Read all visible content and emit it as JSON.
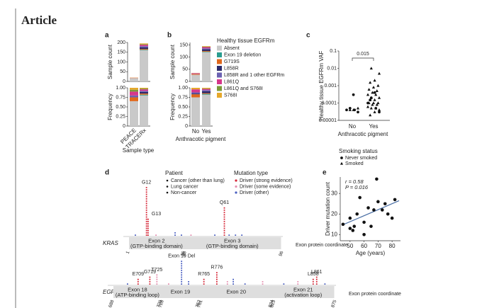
{
  "header": {
    "title": "Article"
  },
  "panels": {
    "a": {
      "label": "a",
      "xlabel": "Sample type",
      "categories": [
        "PEACE",
        "TRACERx"
      ],
      "count": {
        "ylabel": "Sample count",
        "ylim": [
          0,
          200
        ],
        "yticks": [
          0,
          50,
          100,
          150,
          200
        ],
        "values": [
          [
            17,
            0,
            1,
            0,
            0,
            1,
            0,
            1
          ],
          [
            160,
            3,
            4,
            8,
            6,
            7,
            3,
            4
          ]
        ]
      },
      "frequency": {
        "ylabel": "Frequency",
        "ylim": [
          0,
          1
        ],
        "yticks": [
          0,
          {
            "value": 0.25,
            "label": "0.25"
          },
          {
            "value": 0.5,
            "label": "0.50"
          },
          {
            "value": 0.75,
            "label": "0.75"
          },
          {
            "value": 1,
            "label": "1.00"
          }
        ],
        "values": [
          [
            0.65,
            0,
            0.1,
            0,
            0.05,
            0.1,
            0.05,
            0.05
          ],
          [
            0.8,
            0.02,
            0.03,
            0.04,
            0.03,
            0.04,
            0.02,
            0.02
          ]
        ]
      }
    },
    "b": {
      "label": "b",
      "xlabel": "Anthracotic pigment",
      "categories": [
        "No",
        "Yes"
      ],
      "count": {
        "ylabel": "Sample count",
        "ylim": [
          0,
          160
        ],
        "yticks": [
          0,
          50,
          100,
          150
        ],
        "values": [
          [
            27,
            0,
            3,
            0,
            1,
            3,
            0,
            1
          ],
          [
            120,
            2,
            3,
            7,
            4,
            5,
            2,
            2
          ]
        ]
      },
      "frequency": {
        "ylabel": "Frequency",
        "ylim": [
          0,
          1
        ],
        "yticks": [
          0,
          {
            "value": 0.25,
            "label": "0.25"
          },
          {
            "value": 0.5,
            "label": "0.50"
          },
          {
            "value": 0.75,
            "label": "0.75"
          },
          {
            "value": 1,
            "label": "1.00"
          }
        ],
        "values": [
          [
            0.75,
            0,
            0.08,
            0.02,
            0.03,
            0.08,
            0,
            0.04
          ],
          [
            0.82,
            0.02,
            0.02,
            0.05,
            0.03,
            0.03,
            0.01,
            0.02
          ]
        ]
      },
      "legend": {
        "title": "Healthy tissue EGFRm",
        "items": [
          {
            "name": "Absent",
            "color": "#c9c9c9"
          },
          {
            "name": "Exon 19 deletion",
            "color": "#2a9d8f"
          },
          {
            "name": "G719S",
            "color": "#e0681c"
          },
          {
            "name": "L858R",
            "color": "#2b2a6b"
          },
          {
            "name": "L858R and 1 other EGFRm",
            "color": "#6b62b3"
          },
          {
            "name": "L861Q",
            "color": "#d6378b"
          },
          {
            "name": "L861Q and S768I",
            "color": "#7a9a3a"
          },
          {
            "name": "S768I",
            "color": "#e6a82b"
          }
        ]
      }
    },
    "c": {
      "label": "c",
      "ylabel": "Healthy tissue EGFRm VAF",
      "xlabel": "Anthracotic pigment",
      "categories": [
        "No",
        "Yes"
      ],
      "ylim": [
        1e-05,
        0.1
      ],
      "log_scale": true,
      "yticks": [
        1e-05,
        0.0001,
        0.001,
        0.01,
        0.1
      ],
      "annotation": "0.015",
      "legend_title": "Smoking status",
      "series": [
        {
          "name": "Never smoked",
          "marker": "circle",
          "values": [
            [
              4e-05,
              4e-05,
              5e-05,
              3e-05,
              0.0003
            ],
            [
              0.0001,
              5e-05,
              0.0002,
              3e-05,
              0.0004,
              0.00015
            ]
          ]
        },
        {
          "name": "Smoked",
          "marker": "triangle",
          "values": [
            [
              4e-05,
              5e-05,
              4e-05
            ],
            [
              0.01,
              0.005,
              0.002,
              0.0015,
              0.001,
              0.0008,
              0.0006,
              0.0005,
              0.0004,
              0.0003,
              0.0003,
              0.0002,
              0.0002,
              0.00015,
              0.00015,
              0.0001,
              0.0001,
              0.0001,
              8e-05,
              8e-05,
              6e-05,
              5e-05,
              5e-05,
              4e-05,
              3e-05,
              2e-05
            ]
          ]
        }
      ]
    },
    "d": {
      "label": "d",
      "coordinate_label": "Exon protein coordinate",
      "patient_legend": {
        "title": "Patient",
        "items": [
          "Cancer (other than lung)",
          "Lung cancer",
          "Non-cancer"
        ]
      },
      "mutation_legend": {
        "title": "Mutation type",
        "items": [
          {
            "name": "Driver (strong evidence)",
            "color": "#d62839"
          },
          {
            "name": "Driver (some evidence)",
            "color": "#e58fb0"
          },
          {
            "name": "Driver (other)",
            "color": "#4a5fc1"
          }
        ]
      },
      "genes": [
        {
          "name": "KRAS",
          "xlim": [
            1,
            96
          ],
          "exons": [
            {
              "label": "Exon 2",
              "sublabel": "(GTP-binding domain)",
              "start": 1,
              "end": 35
            },
            {
              "label": "Exon 3",
              "sublabel": "(GTP-binding domain)",
              "start": 36,
              "end": 96
            }
          ],
          "mutations": [
            {
              "position": 12,
              "count": 22,
              "type": 0,
              "label": "G12"
            },
            {
              "position": 13,
              "count": 8,
              "type": 0,
              "label": "G13"
            },
            {
              "position": 61,
              "count": 13,
              "type": 0,
              "label": "Q61"
            },
            {
              "position": 5,
              "count": 1,
              "type": 2
            },
            {
              "position": 18,
              "count": 1,
              "type": 1
            },
            {
              "position": 30,
              "count": 2,
              "type": 2
            },
            {
              "position": 34,
              "count": 1,
              "type": 2
            },
            {
              "position": 40,
              "count": 1,
              "type": 1
            },
            {
              "position": 55,
              "count": 1,
              "type": 2
            },
            {
              "position": 64,
              "count": 1,
              "type": 2
            },
            {
              "position": 68,
              "count": 1,
              "type": 2
            },
            {
              "position": 72,
              "count": 1,
              "type": 2
            }
          ]
        },
        {
          "name": "EGFR",
          "xlim": [
            688,
            875
          ],
          "exons": [
            {
              "label": "Exon 18",
              "sublabel": "(ATP-binding loop)",
              "start": 688,
              "end": 728
            },
            {
              "label": "Exon 19",
              "start": 729,
              "end": 761
            },
            {
              "label": "Exon 20",
              "start": 762,
              "end": 823
            },
            {
              "label": "Exon 21",
              "sublabel": "(activation loop)",
              "start": 824,
              "end": 875
            }
          ],
          "mutations": [
            {
              "position": 709,
              "count": 3,
              "type": 0,
              "label": "E709"
            },
            {
              "position": 719,
              "count": 4,
              "type": 0,
              "label": "G719"
            },
            {
              "position": 725,
              "count": 5,
              "type": 1,
              "label": "T725"
            },
            {
              "position": 746,
              "count": 11,
              "type": 2,
              "label": "Exon 19 Del"
            },
            {
              "position": 765,
              "count": 3,
              "type": 0,
              "label": "R765"
            },
            {
              "position": 776,
              "count": 6,
              "type": 0,
              "label": "R776"
            },
            {
              "position": 858,
              "count": 3,
              "type": 0,
              "label": "L858"
            },
            {
              "position": 861,
              "count": 4,
              "type": 0,
              "label": "L861"
            },
            {
              "position": 700,
              "count": 1,
              "type": 2
            },
            {
              "position": 735,
              "count": 1,
              "type": 1
            },
            {
              "position": 752,
              "count": 2,
              "type": 2
            },
            {
              "position": 785,
              "count": 2,
              "type": 1
            },
            {
              "position": 790,
              "count": 3,
              "type": 2
            },
            {
              "position": 800,
              "count": 1,
              "type": 2
            },
            {
              "position": 815,
              "count": 2,
              "type": 1
            },
            {
              "position": 833,
              "count": 1,
              "type": 2
            },
            {
              "position": 845,
              "count": 2,
              "type": 1
            },
            {
              "position": 868,
              "count": 1,
              "type": 2
            }
          ]
        }
      ]
    },
    "e": {
      "label": "e",
      "xlabel": "Age (years)",
      "ylabel": "Driver mutation count",
      "annotations": [
        "r = 0.58",
        "P = 0.016"
      ],
      "xlim": [
        43,
        86
      ],
      "xticks": [
        50,
        60,
        70,
        80
      ],
      "ylim": [
        7,
        38
      ],
      "yticks": [
        10,
        20,
        30
      ],
      "x": [
        45,
        50,
        50,
        52,
        53,
        55,
        57,
        60,
        60,
        63,
        65,
        67,
        69,
        70,
        73,
        75,
        77,
        80,
        82
      ],
      "y": [
        15,
        18,
        13,
        12,
        14,
        20,
        28,
        16,
        10,
        23,
        14,
        22,
        37,
        26,
        22,
        25,
        20,
        18,
        27
      ],
      "trend_line": {
        "x": [
          44,
          85
        ],
        "y": [
          14.5,
          26.5
        ],
        "color": "#4a6fa5"
      }
    }
  }
}
